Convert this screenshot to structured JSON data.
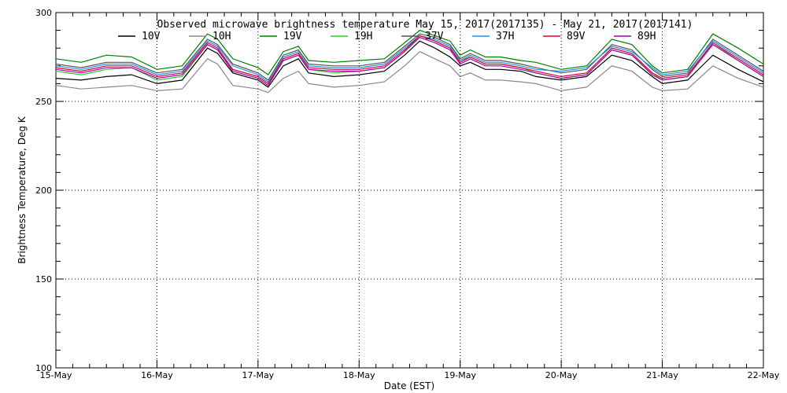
{
  "chart_data": {
    "type": "line",
    "title": "Observed microwave brightness temperature  May 15, 2017(2017135) - May 21, 2017(2017141)",
    "xlabel": "Date (EST)",
    "ylabel": "Brightness Temperature, Deg K",
    "ylim": [
      100,
      300
    ],
    "xlim": [
      0,
      7
    ],
    "y_ticks": [
      100,
      150,
      200,
      250,
      300
    ],
    "x_ticks": [
      0,
      1,
      2,
      3,
      4,
      5,
      6,
      7
    ],
    "x_tick_labels": [
      "15-May",
      "16-May",
      "17-May",
      "18-May",
      "19-May",
      "20-May",
      "21-May",
      "22-May"
    ],
    "grid": true,
    "legend_position": "top",
    "x": [
      0,
      0.25,
      0.5,
      0.75,
      1.0,
      1.25,
      1.5,
      1.6,
      1.75,
      2.0,
      2.1,
      2.25,
      2.4,
      2.5,
      2.75,
      3.0,
      3.25,
      3.45,
      3.6,
      3.75,
      3.9,
      4.0,
      4.1,
      4.25,
      4.4,
      4.6,
      4.75,
      5.0,
      5.25,
      5.5,
      5.7,
      5.9,
      6.0,
      6.25,
      6.5,
      6.75,
      7.0
    ],
    "series": [
      {
        "name": "10V",
        "color": "#000000",
        "values": [
          263,
          262,
          264,
          265,
          260,
          262,
          280,
          277,
          266,
          262,
          258,
          270,
          274,
          266,
          264,
          265,
          267,
          276,
          284,
          280,
          275,
          270,
          272,
          268,
          268,
          267,
          264,
          262,
          264,
          276,
          273,
          264,
          260,
          262,
          276,
          268,
          261
        ]
      },
      {
        "name": "10H",
        "color": "#888888",
        "values": [
          259,
          257,
          258,
          259,
          256,
          257,
          274,
          271,
          259,
          257,
          255,
          263,
          267,
          260,
          258,
          259,
          261,
          270,
          278,
          274,
          270,
          264,
          266,
          262,
          262,
          261,
          260,
          256,
          258,
          270,
          267,
          258,
          256,
          257,
          270,
          263,
          258
        ]
      },
      {
        "name": "19V",
        "color": "#008000",
        "values": [
          274,
          272,
          276,
          275,
          268,
          270,
          288,
          285,
          274,
          269,
          265,
          278,
          281,
          273,
          272,
          273,
          274,
          283,
          290,
          287,
          284,
          276,
          279,
          275,
          275,
          273,
          272,
          268,
          270,
          285,
          282,
          270,
          266,
          268,
          288,
          280,
          271
        ]
      },
      {
        "name": "19H",
        "color": "#33cc33",
        "values": [
          267,
          265,
          268,
          269,
          262,
          264,
          282,
          279,
          268,
          264,
          260,
          273,
          276,
          268,
          266,
          267,
          269,
          278,
          287,
          284,
          280,
          273,
          275,
          271,
          271,
          269,
          266,
          263,
          265,
          279,
          276,
          266,
          262,
          264,
          283,
          273,
          264
        ]
      },
      {
        "name": "37V",
        "color": "#555555",
        "values": [
          271,
          269,
          272,
          272,
          266,
          268,
          285,
          282,
          271,
          266,
          262,
          276,
          279,
          271,
          270,
          270,
          272,
          281,
          288,
          286,
          282,
          274,
          277,
          273,
          273,
          271,
          269,
          266,
          268,
          282,
          279,
          268,
          264,
          266,
          285,
          276,
          267
        ]
      },
      {
        "name": "37H",
        "color": "#1e90ff",
        "values": [
          270,
          268,
          271,
          271,
          265,
          267,
          284,
          281,
          270,
          265,
          261,
          275,
          278,
          270,
          269,
          269,
          271,
          280,
          287,
          285,
          281,
          273,
          276,
          272,
          272,
          270,
          268,
          267,
          269,
          281,
          278,
          269,
          265,
          267,
          284,
          275,
          266
        ]
      },
      {
        "name": "89V",
        "color": "#e0002a",
        "values": [
          269,
          267,
          270,
          270,
          264,
          266,
          283,
          280,
          268,
          264,
          260,
          274,
          277,
          269,
          268,
          268,
          270,
          279,
          287,
          284,
          280,
          272,
          275,
          271,
          271,
          269,
          267,
          264,
          266,
          280,
          277,
          266,
          263,
          265,
          283,
          274,
          265
        ]
      },
      {
        "name": "89H",
        "color": "#aa00aa",
        "values": [
          268,
          266,
          269,
          269,
          263,
          265,
          282,
          279,
          267,
          263,
          259,
          273,
          276,
          268,
          267,
          267,
          269,
          278,
          286,
          283,
          279,
          271,
          274,
          270,
          270,
          268,
          266,
          263,
          265,
          279,
          276,
          265,
          262,
          264,
          282,
          273,
          264
        ]
      }
    ]
  }
}
